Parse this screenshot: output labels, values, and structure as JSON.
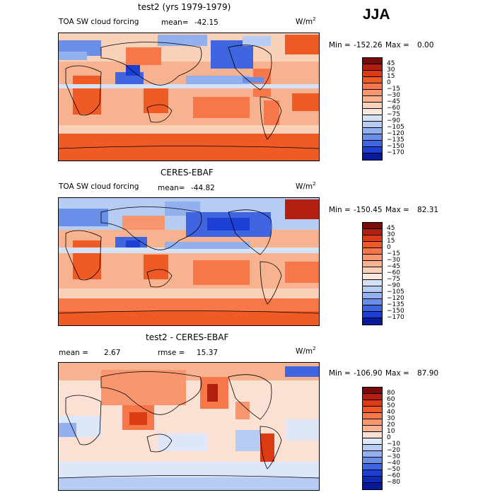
{
  "season": "JJA",
  "panels": [
    {
      "title": "test2 (yrs 1979-1979)",
      "left_label": "TOA SW cloud forcing",
      "stat_label": "mean=",
      "stat_value": "-42.15",
      "unit": "W/m",
      "unit_sup": "2",
      "min_label": "Min =",
      "min_value": "-152.26",
      "max_label": "Max =",
      "max_value": "0.00",
      "colorbar": {
        "labels": [
          "45",
          "30",
          "15",
          "0",
          "−15",
          "−30",
          "−45",
          "−60",
          "−75",
          "−90",
          "−105",
          "−120",
          "−135",
          "−150",
          "−170"
        ],
        "colors": [
          "#7a0b0b",
          "#b3200f",
          "#dc3b14",
          "#ef5a25",
          "#f6784a",
          "#f7966f",
          "#f7b390",
          "#f9d0b8",
          "#fbe8dd",
          "#d5e1f5",
          "#b7ccf2",
          "#93b0ee",
          "#6a8fe9",
          "#3f66e0",
          "#1c3fd6",
          "#081a9c"
        ]
      }
    },
    {
      "title": "CERES-EBAF",
      "left_label": "TOA SW cloud forcing",
      "stat_label": "mean=",
      "stat_value": "-44.82",
      "unit": "W/m",
      "unit_sup": "2",
      "min_label": "Min =",
      "min_value": "-150.45",
      "max_label": "Max =",
      "max_value": "82.31",
      "colorbar": {
        "labels": [
          "45",
          "30",
          "15",
          "0",
          "−15",
          "−30",
          "−45",
          "−60",
          "−75",
          "−90",
          "−105",
          "−120",
          "−135",
          "−150",
          "−170"
        ],
        "colors": [
          "#7a0b0b",
          "#b3200f",
          "#dc3b14",
          "#ef5a25",
          "#f6784a",
          "#f7966f",
          "#f7b390",
          "#f9d0b8",
          "#fbe8dd",
          "#d5e1f5",
          "#b7ccf2",
          "#93b0ee",
          "#6a8fe9",
          "#3f66e0",
          "#1c3fd6",
          "#081a9c"
        ]
      }
    },
    {
      "title": "test2 - CERES-EBAF",
      "left_label": "mean =",
      "left_value": "2.67",
      "stat_label": "rmse =",
      "stat_value": "15.37",
      "unit": "W/m",
      "unit_sup": "2",
      "min_label": "Min =",
      "min_value": "-106.90",
      "max_label": "Max =",
      "max_value": "87.90",
      "colorbar": {
        "labels": [
          "80",
          "60",
          "50",
          "40",
          "30",
          "20",
          "10",
          "0",
          "−10",
          "−20",
          "−30",
          "−40",
          "−50",
          "−60",
          "−80"
        ],
        "colors": [
          "#7a0b0b",
          "#b3200f",
          "#dc3b14",
          "#ef5a25",
          "#f6784a",
          "#f7966f",
          "#f7b390",
          "#fbe1d3",
          "#dde7f7",
          "#b7ccf2",
          "#93b0ee",
          "#6a8fe9",
          "#3f66e0",
          "#1c3fd6",
          "#0e2bb8",
          "#081a9c"
        ]
      }
    }
  ]
}
